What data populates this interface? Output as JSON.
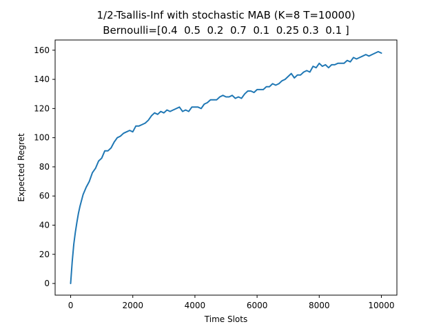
{
  "chart_data": {
    "type": "line",
    "title_line1": "1/2-Tsallis-Inf with stochastic MAB (K=8 T=10000)",
    "title_line2": "Bernoulli=[0.4  0.5  0.2  0.7  0.1  0.25 0.3  0.1 ]",
    "xlabel": "Time Slots",
    "ylabel": "Expected Regret",
    "xlim": [
      -500,
      10500
    ],
    "ylim": [
      -8,
      167
    ],
    "xticks": [
      0,
      2000,
      4000,
      6000,
      8000,
      10000
    ],
    "xtick_labels": [
      "0",
      "2000",
      "4000",
      "6000",
      "8000",
      "10000"
    ],
    "yticks": [
      0,
      20,
      40,
      60,
      80,
      100,
      120,
      140,
      160
    ],
    "ytick_labels": [
      "0",
      "20",
      "40",
      "60",
      "80",
      "100",
      "120",
      "140",
      "160"
    ],
    "grid": false,
    "series": [
      {
        "color": "#1f77b4",
        "x": [
          0,
          50,
          100,
          150,
          200,
          250,
          300,
          400,
          500,
          600,
          700,
          800,
          900,
          1000,
          1100,
          1200,
          1300,
          1400,
          1500,
          1600,
          1700,
          1800,
          1900,
          2000,
          2100,
          2200,
          2300,
          2400,
          2500,
          2600,
          2700,
          2800,
          2900,
          3000,
          3100,
          3200,
          3300,
          3400,
          3500,
          3600,
          3700,
          3800,
          3900,
          4000,
          4100,
          4200,
          4300,
          4400,
          4500,
          4600,
          4700,
          4800,
          4900,
          5000,
          5100,
          5200,
          5300,
          5400,
          5500,
          5600,
          5700,
          5800,
          5900,
          6000,
          6100,
          6200,
          6300,
          6400,
          6500,
          6600,
          6700,
          6800,
          6900,
          7000,
          7100,
          7200,
          7300,
          7400,
          7500,
          7600,
          7700,
          7800,
          7900,
          8000,
          8100,
          8200,
          8300,
          8400,
          8500,
          8600,
          8700,
          8800,
          8900,
          9000,
          9100,
          9200,
          9300,
          9400,
          9500,
          9600,
          9700,
          9800,
          9900,
          10000
        ],
        "y": [
          0,
          15,
          27,
          35,
          42,
          48,
          53,
          61,
          66,
          70,
          76,
          79,
          84,
          86,
          91,
          91,
          93,
          97,
          100,
          101,
          103,
          104,
          105,
          104,
          108,
          108,
          109,
          110,
          112,
          115,
          117,
          116,
          118,
          117,
          119,
          118,
          119,
          120,
          121,
          118,
          119,
          118,
          121,
          121,
          121,
          120,
          123,
          124,
          126,
          126,
          126,
          128,
          129,
          128,
          128,
          129,
          127,
          128,
          127,
          130,
          132,
          132,
          131,
          133,
          133,
          133,
          135,
          135,
          137,
          136,
          137,
          139,
          140,
          142,
          144,
          141,
          143,
          143,
          145,
          146,
          145,
          149,
          148,
          151,
          149,
          150,
          148,
          150,
          150,
          151,
          151,
          151,
          153,
          152,
          155,
          154,
          155,
          156,
          157,
          156,
          157,
          158,
          159,
          158
        ]
      }
    ]
  }
}
